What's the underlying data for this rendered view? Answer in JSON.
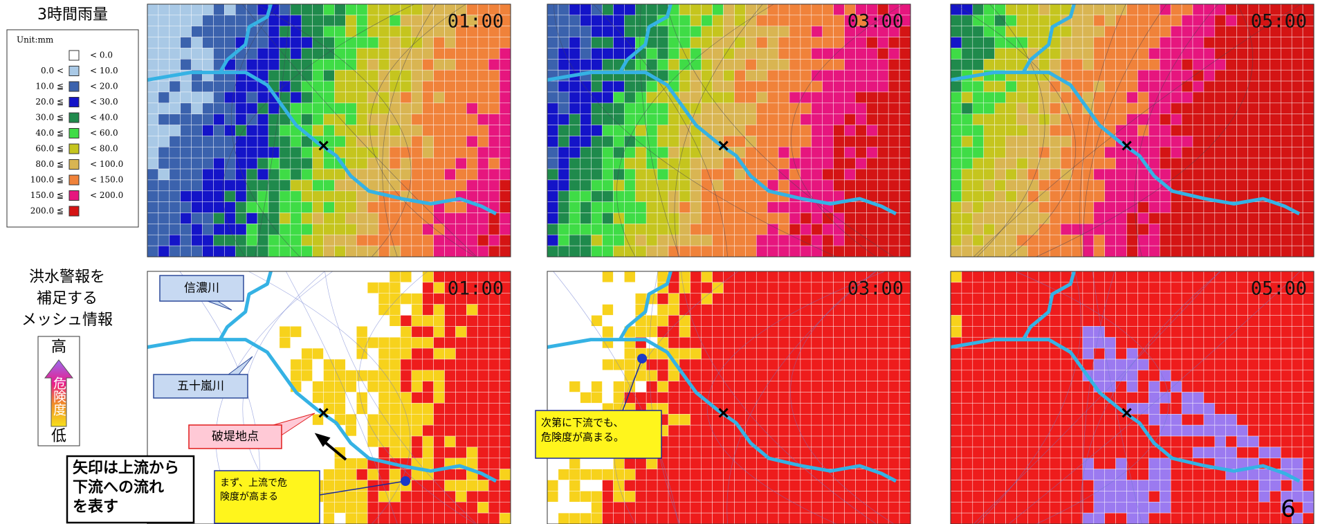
{
  "rain": {
    "title": "3時間雨量",
    "unit": "Unit:mm",
    "legend": [
      {
        "to": "< 0.0",
        "color": "#ffffff"
      },
      {
        "from": "0.0 <",
        "to": "< 10.0",
        "color": "#a9c9e6"
      },
      {
        "from": "10.0 ≦",
        "to": "< 20.0",
        "color": "#3b62ad"
      },
      {
        "from": "20.0 ≦",
        "to": "< 30.0",
        "color": "#1414c8"
      },
      {
        "from": "30.0 ≦",
        "to": "< 40.0",
        "color": "#1f8a4c"
      },
      {
        "from": "40.0 ≦",
        "to": "< 60.0",
        "color": "#3fdc46"
      },
      {
        "from": "60.0 ≦",
        "to": "< 80.0",
        "color": "#c5c51e"
      },
      {
        "from": "80.0 ≦",
        "to": "< 100.0",
        "color": "#d9b552"
      },
      {
        "from": "100.0 ≦",
        "to": "< 150.0",
        "color": "#f0823a"
      },
      {
        "from": "150.0 ≦",
        "to": "< 200.0",
        "color": "#e6167e"
      },
      {
        "from": "200.0 ≦",
        "color": "#d41414"
      }
    ],
    "panels": [
      "01:00",
      "03:00",
      "05:00"
    ]
  },
  "risk": {
    "title_lines": [
      "洪水警報を",
      "補足する",
      "メッシュ情報"
    ],
    "scale": {
      "high": "高",
      "label": "危険度",
      "low": "低"
    },
    "panels": [
      "01:00",
      "03:00",
      "05:00"
    ],
    "callouts": {
      "river1": "信濃川",
      "river2": "五十嵐川",
      "breach": "破堤地点",
      "arrow_note": [
        "矢印は上流から",
        "下流への流れ",
        "を表す"
      ],
      "upstream": [
        "まず、上流で危",
        "険度が高まる"
      ],
      "downstream": [
        "次第に下流でも、",
        "危険度が高まる。"
      ]
    }
  },
  "page_number": "6"
}
